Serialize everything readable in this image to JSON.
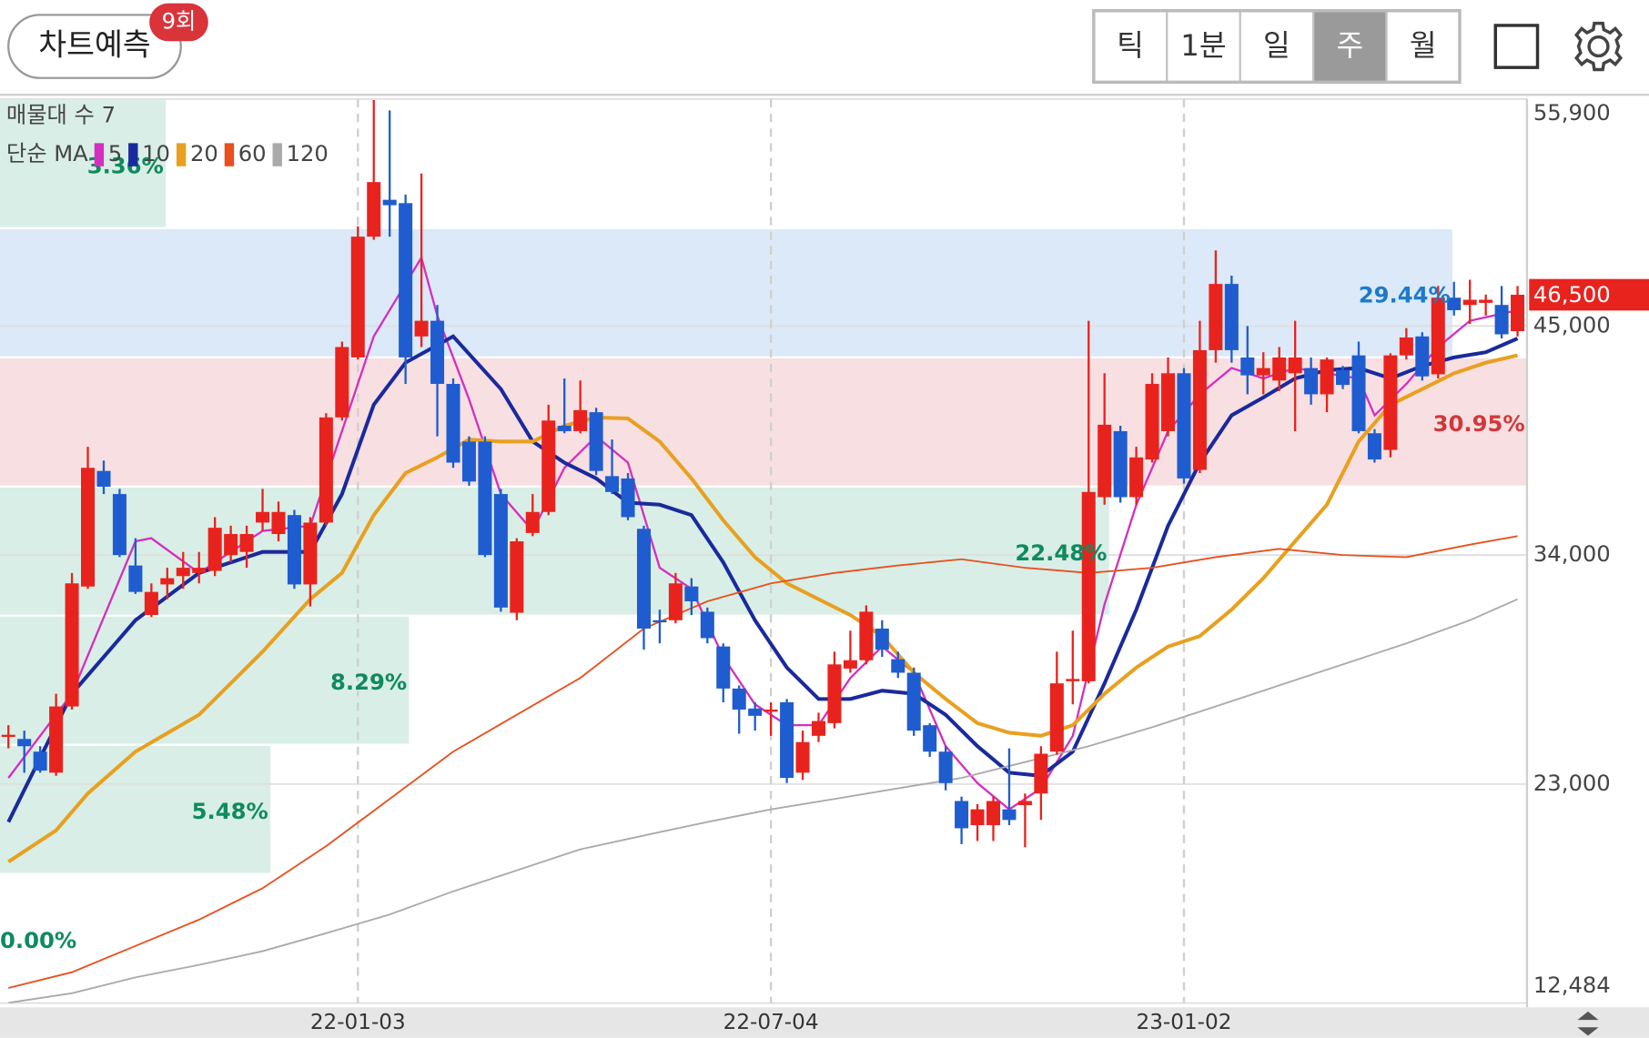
{
  "header": {
    "predict_button": "차트예측",
    "badge": "9회",
    "periods": [
      "틱",
      "1분",
      "일",
      "주",
      "월"
    ],
    "selected_period": 3
  },
  "chart_data": {
    "type": "candlestick",
    "ylim": [
      12484,
      55900
    ],
    "yticks": [
      {
        "value": 12484,
        "label": "12,484"
      },
      {
        "value": 23000,
        "label": "23,000"
      },
      {
        "value": 34000,
        "label": "34,000"
      },
      {
        "value": 45000,
        "label": "45,000"
      },
      {
        "value": 55900,
        "label": "55,900"
      }
    ],
    "xticks": [
      {
        "value": 22,
        "label": "22-01-03"
      },
      {
        "value": 48,
        "label": "22-07-04"
      },
      {
        "value": 74,
        "label": "23-01-02"
      }
    ],
    "grid": true,
    "up_color": "#e8231e",
    "down_color": "#1f5ccf",
    "open": [
      25320,
      25170,
      24560,
      23550,
      26730,
      32490,
      38040,
      36930,
      33500,
      31120,
      32590,
      32990,
      33140,
      33240,
      34000,
      34150,
      35560,
      35010,
      35920,
      32590,
      35560,
      40610,
      43490,
      49290,
      51060,
      50900,
      44500,
      45250,
      42220,
      39450,
      39450,
      36930,
      31230,
      35060,
      36070,
      40210,
      39950,
      40860,
      37790,
      37680,
      35260,
      30870,
      30870,
      32490,
      31280,
      29610,
      27590,
      26630,
      26480,
      26930,
      23550,
      25320,
      25930,
      28550,
      28950,
      30470,
      29000,
      28350,
      25830,
      24560,
      22190,
      21030,
      21030,
      21790,
      21990,
      22550,
      24560,
      27940,
      27940,
      36780,
      39950,
      36780,
      38590,
      39950,
      42730,
      38090,
      43840,
      47020,
      43490,
      42630,
      42380,
      42730,
      42980,
      41720,
      42880,
      43590,
      39850,
      39050,
      43590,
      44500,
      42680,
      46360,
      46010,
      46110,
      46010,
      44750
    ],
    "high": [
      25830,
      25570,
      24820,
      27340,
      33140,
      39200,
      38540,
      37180,
      34810,
      32640,
      33390,
      34150,
      34150,
      35820,
      35410,
      35410,
      37180,
      36570,
      36170,
      35820,
      40810,
      44250,
      49790,
      55850,
      55350,
      51310,
      52320,
      46010,
      42480,
      39700,
      39700,
      37180,
      34810,
      36930,
      41220,
      42480,
      42380,
      41070,
      39550,
      37940,
      35410,
      31380,
      33140,
      32890,
      31480,
      29760,
      27740,
      26930,
      26930,
      27090,
      25570,
      26430,
      29360,
      30370,
      31580,
      30870,
      29360,
      28600,
      25930,
      24820,
      22400,
      22040,
      22400,
      24720,
      22550,
      24820,
      29360,
      30370,
      45250,
      42730,
      40210,
      39200,
      42730,
      43490,
      42980,
      45250,
      48630,
      47420,
      45000,
      43740,
      43990,
      45250,
      43490,
      43490,
      43080,
      44250,
      40050,
      43690,
      44900,
      44700,
      46920,
      47120,
      47220,
      46510,
      46920,
      46920
    ],
    "low": [
      24720,
      23550,
      23550,
      23400,
      26580,
      32380,
      36930,
      33900,
      32130,
      31020,
      31880,
      32380,
      32640,
      32990,
      33650,
      33390,
      35160,
      34660,
      32380,
      31530,
      35410,
      40460,
      43390,
      49140,
      49290,
      42220,
      43990,
      39700,
      38190,
      37330,
      33900,
      31280,
      30870,
      34910,
      35920,
      39850,
      39850,
      37840,
      36930,
      35670,
      29460,
      29760,
      30720,
      31120,
      29760,
      26930,
      25420,
      25570,
      25320,
      23050,
      23200,
      25020,
      25680,
      28350,
      28750,
      29110,
      28100,
      25320,
      24310,
      22700,
      20120,
      20270,
      20270,
      21030,
      19970,
      21280,
      24410,
      26830,
      27840,
      36420,
      36520,
      36420,
      38440,
      39700,
      37430,
      37940,
      43240,
      43240,
      41720,
      41720,
      41870,
      39950,
      41220,
      40860,
      41970,
      39850,
      38440,
      38690,
      43390,
      42380,
      42480,
      45500,
      45100,
      45500,
      44400,
      44500
    ],
    "close": [
      25370,
      24820,
      23650,
      26730,
      32640,
      38190,
      37280,
      34000,
      32230,
      32230,
      32890,
      33390,
      33390,
      35310,
      35010,
      35010,
      36070,
      36070,
      32590,
      35560,
      40610,
      43990,
      49290,
      51910,
      50800,
      43490,
      45250,
      42220,
      38440,
      37530,
      34000,
      31480,
      34660,
      36070,
      40460,
      39950,
      40960,
      38040,
      37030,
      35820,
      30470,
      30770,
      32640,
      31780,
      30010,
      27590,
      26580,
      26280,
      26580,
      23300,
      25020,
      26030,
      28750,
      28950,
      31280,
      29460,
      28350,
      25570,
      24560,
      23050,
      20880,
      21790,
      22190,
      21280,
      22190,
      24460,
      27840,
      28050,
      37030,
      40260,
      36780,
      38690,
      42220,
      42730,
      37680,
      43840,
      47020,
      43840,
      42630,
      42980,
      43490,
      43490,
      41720,
      43390,
      42170,
      39950,
      38590,
      43590,
      44450,
      42580,
      46360,
      45760,
      46260,
      46260,
      44600,
      46500
    ],
    "ma_title": "단순 MA",
    "moving_averages": [
      {
        "name": "5",
        "color": "#d42fbf",
        "x": [
          0,
          4,
          8,
          9,
          12,
          16,
          19,
          21,
          23,
          26,
          27,
          29,
          31,
          33,
          35,
          37,
          39,
          41,
          43,
          45,
          47,
          49,
          51,
          53,
          55,
          57,
          59,
          61,
          63,
          65,
          67,
          69,
          71,
          73,
          75,
          77,
          79,
          81,
          83,
          85,
          86,
          88,
          90,
          92,
          95
        ],
        "values": [
          23300,
          27340,
          34660,
          34810,
          33140,
          35160,
          35410,
          39950,
          44500,
          48280,
          45500,
          41470,
          36930,
          35160,
          38190,
          39700,
          38440,
          33390,
          32380,
          29110,
          26830,
          25830,
          25830,
          28100,
          29610,
          28350,
          24820,
          23050,
          21790,
          22800,
          25320,
          31630,
          36420,
          39950,
          41720,
          42980,
          42480,
          42980,
          42730,
          42480,
          40710,
          42220,
          43990,
          45250,
          45760
        ]
      },
      {
        "name": "10",
        "color": "#1a2a9c",
        "x": [
          0,
          4,
          8,
          12,
          16,
          19,
          21,
          23,
          25,
          28,
          31,
          33,
          35,
          37,
          39,
          41,
          43,
          45,
          47,
          49,
          51,
          53,
          55,
          57,
          59,
          61,
          63,
          65,
          67,
          69,
          71,
          73,
          75,
          77,
          79,
          81,
          83,
          85,
          87,
          89,
          91,
          93,
          95
        ],
        "values": [
          21180,
          27340,
          30870,
          33140,
          34150,
          34150,
          36930,
          41220,
          43240,
          44500,
          41970,
          39450,
          38440,
          37680,
          36520,
          36420,
          35920,
          33650,
          30870,
          28600,
          27090,
          27090,
          27490,
          27340,
          26330,
          24820,
          23550,
          23400,
          24560,
          27840,
          31380,
          35410,
          38440,
          40710,
          41570,
          42480,
          42880,
          42980,
          42480,
          43080,
          43490,
          43740,
          44400
        ]
      },
      {
        "name": "20",
        "color": "#e8a020",
        "x": [
          0,
          3,
          5,
          8,
          12,
          16,
          19,
          21,
          23,
          25,
          27,
          29,
          31,
          33,
          35,
          37,
          39,
          41,
          43,
          45,
          47,
          49,
          51,
          53,
          55,
          57,
          59,
          61,
          63,
          65,
          67,
          69,
          71,
          73,
          75,
          77,
          79,
          81,
          83,
          85,
          87,
          89,
          91,
          93,
          95
        ],
        "values": [
          19270,
          20780,
          22550,
          24560,
          26330,
          29360,
          31880,
          33140,
          35920,
          37940,
          38690,
          39550,
          39450,
          39450,
          40210,
          40610,
          40560,
          39450,
          37680,
          35670,
          33900,
          32640,
          31880,
          31120,
          30110,
          28350,
          27090,
          25930,
          25470,
          25320,
          25830,
          27340,
          28600,
          29610,
          30110,
          31380,
          32890,
          34660,
          36420,
          39450,
          41220,
          41970,
          42730,
          43240,
          43590
        ]
      },
      {
        "name": "60",
        "color": "#e8501e",
        "x": [
          0,
          4,
          8,
          12,
          16,
          20,
          24,
          28,
          32,
          36,
          40,
          44,
          48,
          52,
          56,
          60,
          64,
          68,
          72,
          76,
          80,
          84,
          88,
          92,
          95
        ],
        "values": [
          13210,
          13970,
          15230,
          16490,
          18000,
          20020,
          22290,
          24560,
          26330,
          28100,
          30470,
          31780,
          32640,
          33140,
          33500,
          33800,
          33390,
          33140,
          33390,
          33900,
          34300,
          34000,
          33900,
          34500,
          34910
        ]
      },
      {
        "name": "120",
        "color": "#aaaaaa",
        "x": [
          0,
          4,
          8,
          12,
          16,
          20,
          24,
          28,
          32,
          36,
          40,
          44,
          48,
          52,
          56,
          60,
          64,
          68,
          72,
          76,
          80,
          84,
          88,
          92,
          95
        ],
        "values": [
          12500,
          12960,
          13720,
          14320,
          14980,
          15840,
          16740,
          17850,
          18860,
          19870,
          20530,
          21180,
          21790,
          22290,
          22800,
          23300,
          24060,
          24820,
          25730,
          26730,
          27740,
          28750,
          29760,
          30870,
          31880
        ]
      }
    ],
    "volume_profile": {
      "title": "매물대 수 7",
      "values": [
        0.0,
        5.48,
        8.29,
        22.48,
        30.95,
        29.44,
        3.36
      ],
      "value_labels": [
        "0.00%",
        "5.48%",
        "8.29%",
        "22.48%",
        "30.95%",
        "29.44%",
        "3.36%"
      ],
      "colors": [
        "#d9eee6",
        "#d9eee6",
        "#d9eee6",
        "#d9eee6",
        "#f8dfe1",
        "#dbe9f8",
        "#d9eee6"
      ],
      "label_colors": [
        "#0f8a5f",
        "#0f8a5f",
        "#0f8a5f",
        "#0f8a5f",
        "#d0383b",
        "#1e7ac8",
        "#0f8a5f"
      ]
    },
    "current_price": {
      "value": 46500,
      "label": "46,500"
    }
  }
}
